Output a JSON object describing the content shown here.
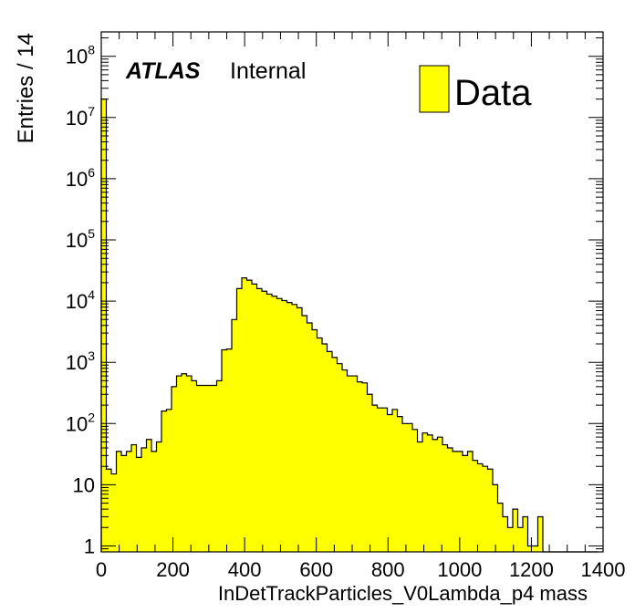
{
  "chart_data": {
    "type": "histogram",
    "xlabel": "InDetTrackParticles_V0Lambda_p4 mass",
    "ylabel": "Entries / 14",
    "xlim": [
      0,
      1400
    ],
    "ylim": [
      0.8,
      250000000
    ],
    "yscale": "log",
    "bin_width": 14,
    "x_ticks": [
      0,
      200,
      400,
      600,
      800,
      1000,
      1200,
      1400
    ],
    "x_tick_labels": [
      "0",
      "200",
      "400",
      "600",
      "800",
      "1000",
      "1200",
      "1400"
    ],
    "y_ticks": [
      1,
      10,
      100,
      1000,
      10000,
      100000,
      1000000,
      10000000,
      100000000
    ],
    "y_tick_labels": [
      {
        "base": "1",
        "exp": ""
      },
      {
        "base": "10",
        "exp": ""
      },
      {
        "base": "10",
        "exp": "2"
      },
      {
        "base": "10",
        "exp": "3"
      },
      {
        "base": "10",
        "exp": "4"
      },
      {
        "base": "10",
        "exp": "5"
      },
      {
        "base": "10",
        "exp": "6"
      },
      {
        "base": "10",
        "exp": "7"
      },
      {
        "base": "10",
        "exp": "8"
      }
    ],
    "label_brand": "ATLAS",
    "label_status": "Internal",
    "legend": {
      "label": "Data",
      "placement": "top-right"
    },
    "fill_color": "#ffff00",
    "line_color": "#000000",
    "series": [
      {
        "name": "Data",
        "values": [
          20000000,
          18,
          15,
          35,
          30,
          35,
          45,
          28,
          40,
          55,
          35,
          50,
          160,
          170,
          400,
          600,
          650,
          600,
          500,
          420,
          420,
          420,
          420,
          500,
          1600,
          1650,
          5000,
          16000,
          24000,
          22000,
          19000,
          16000,
          14500,
          13000,
          12000,
          11000,
          10200,
          9500,
          8800,
          7800,
          5800,
          4400,
          3400,
          2500,
          2000,
          1500,
          1200,
          950,
          750,
          600,
          600,
          480,
          460,
          300,
          200,
          180,
          180,
          140,
          170,
          130,
          100,
          100,
          80,
          50,
          70,
          65,
          55,
          60,
          45,
          40,
          35,
          35,
          30,
          35,
          25,
          22,
          20,
          18,
          10,
          5,
          3,
          2,
          4,
          2,
          3,
          1,
          1,
          3,
          0,
          0,
          0,
          0,
          0,
          0,
          0,
          0,
          0,
          0,
          0,
          0
        ]
      }
    ]
  }
}
